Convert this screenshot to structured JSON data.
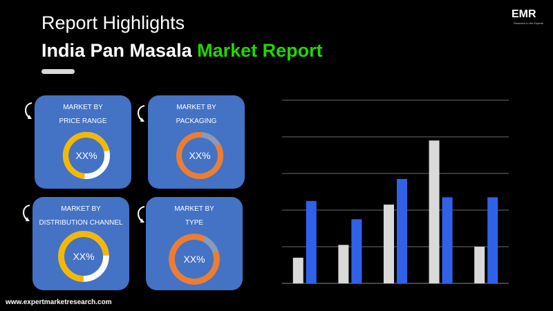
{
  "header": {
    "title_line1": "Report Highlights",
    "title_line2_main": "India Pan Masala ",
    "title_line2_accent": "Market Report"
  },
  "logo": {
    "text": "EMR",
    "subtext": "Research to the Experts"
  },
  "cards": [
    {
      "label_line1": "MARKET BY",
      "label_line2": "PRICE RANGE",
      "value": "XX%",
      "ring_color": "#f5b800"
    },
    {
      "label_line1": "MARKET BY",
      "label_line2": "PACKAGING",
      "value": "XX%",
      "ring_color": "#ed7d31"
    },
    {
      "label_line1": "MARKET BY",
      "label_line2": "DISTRIBUTION CHANNEL",
      "value": "XX%",
      "ring_color": "#f5b800"
    },
    {
      "label_line1": "MARKET BY",
      "label_line2": "TYPE",
      "value": "XX%",
      "ring_color": "#ed7d31"
    }
  ],
  "footer": {
    "url": "www.expertmarketresearch.com"
  },
  "colors": {
    "background": "#000000",
    "accent_green": "#22d600",
    "card_blue": "#4472c4",
    "bar_gray": "#d9d9d9",
    "bar_blue": "#2f62e8",
    "ring_track": "#ffffff"
  },
  "chart_data": {
    "type": "bar",
    "categories": [
      "",
      "",
      "",
      "",
      ""
    ],
    "series": [
      {
        "values": [
          0.7,
          1.05,
          2.15,
          3.9,
          1.0
        ],
        "color": "#d9d9d9"
      },
      {
        "values": [
          2.25,
          1.75,
          2.85,
          2.35,
          2.35
        ],
        "color": "#2f62e8"
      }
    ],
    "ylim": [
      0,
      5
    ],
    "grid": true,
    "xlabel": "",
    "ylabel": "",
    "title": ""
  }
}
